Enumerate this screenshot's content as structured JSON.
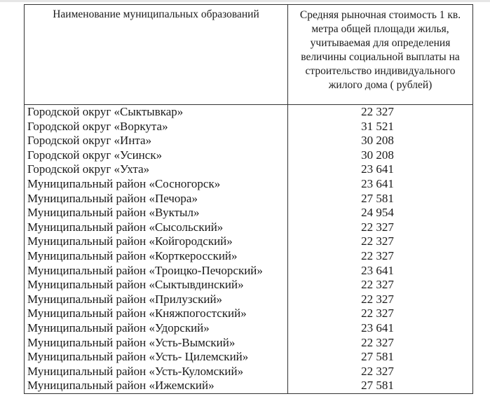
{
  "table": {
    "headers": [
      "Наименование муниципальных образований",
      "Средняя рыночная стоимость 1 кв. метра общей площади жилья, учитываемая для определения величины социальной выплаты на строительство индивидуального жилого дома ( рублей)"
    ],
    "rows": [
      {
        "name": "Городской округ «Сыктывкар»",
        "value": "22 327"
      },
      {
        "name": "Городской округ «Воркута»",
        "value": "31 521"
      },
      {
        "name": "Городской округ «Инта»",
        "value": "30 208"
      },
      {
        "name": "Городской округ «Усинск»",
        "value": "30 208"
      },
      {
        "name": "Городской округ «Ухта»",
        "value": "23 641"
      },
      {
        "name": "Муниципальный район «Сосногорск»",
        "value": "23 641"
      },
      {
        "name": "Муниципальный район «Печора»",
        "value": "27 581"
      },
      {
        "name": "Муниципальный район «Вуктыл»",
        "value": "24 954"
      },
      {
        "name": "Муниципальный район «Сысольский»",
        "value": "22 327"
      },
      {
        "name": "Муниципальный район «Койгородский»",
        "value": "22 327"
      },
      {
        "name": "Муниципальный район «Корткеросский»",
        "value": "22 327"
      },
      {
        "name": "Муниципальный район «Троицко-Печорский»",
        "value": "23 641"
      },
      {
        "name": "Муниципальный район «Сыктывдинский»",
        "value": "22 327"
      },
      {
        "name": "Муниципальный район «Прилузский»",
        "value": "22 327"
      },
      {
        "name": "Муниципальный район «Княжпогостский»",
        "value": "22 327"
      },
      {
        "name": "Муниципальный район «Удорский»",
        "value": "23 641"
      },
      {
        "name": "Муниципальный район «Усть-Вымский»",
        "value": "22 327"
      },
      {
        "name": "Муниципальный район «Усть- Цилемский»",
        "value": "27 581"
      },
      {
        "name": "Муниципальный район «Усть-Куломский»",
        "value": "22 327"
      },
      {
        "name": "Муниципальный район «Ижемский»",
        "value": "27 581"
      }
    ]
  }
}
